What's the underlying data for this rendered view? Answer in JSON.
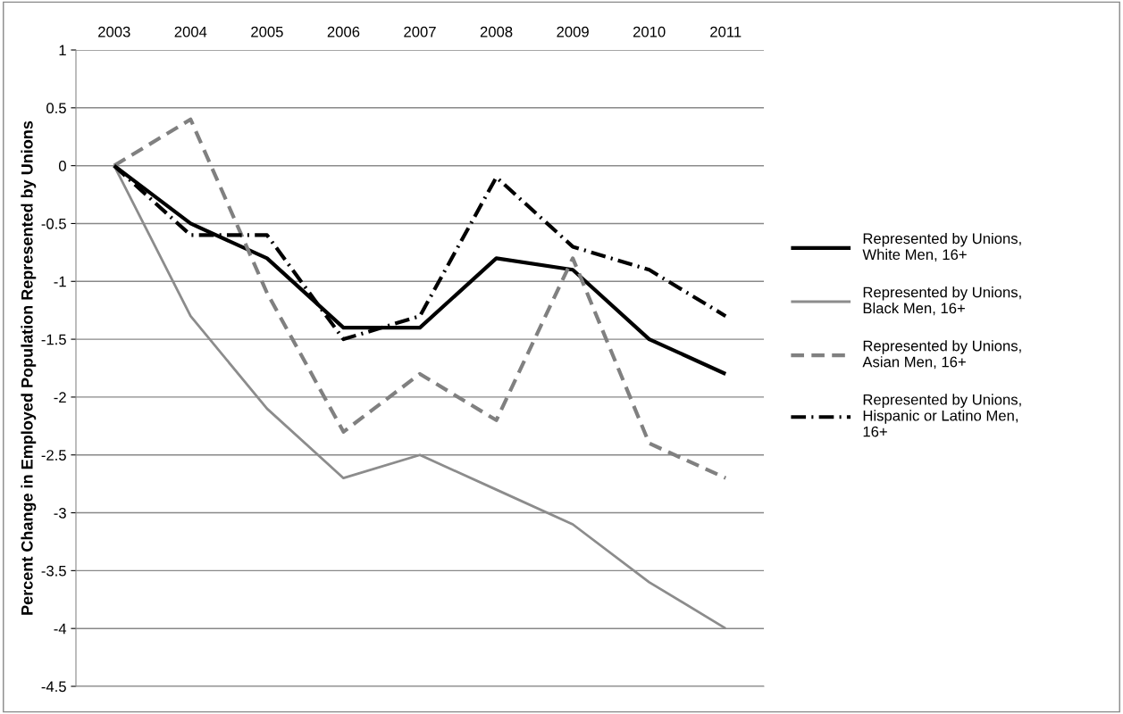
{
  "chart_data": {
    "type": "line",
    "ylabel": "Percent Change in Employed Population Represented by Unions",
    "categories": [
      "2003",
      "2004",
      "2005",
      "2006",
      "2007",
      "2008",
      "2009",
      "2010",
      "2011"
    ],
    "series": [
      {
        "name": "Represented by Unions, White Men, 16+",
        "color": "#000000",
        "line_style": "solid",
        "values": [
          0,
          -0.5,
          -0.8,
          -1.4,
          -1.4,
          -0.8,
          -0.9,
          -1.5,
          -1.8
        ]
      },
      {
        "name": "Represented by Unions, Black Men, 16+",
        "color": "#8c8c8c",
        "line_style": "solid",
        "values": [
          0,
          -1.3,
          -2.1,
          -2.7,
          -2.5,
          -2.8,
          -3.1,
          -3.6,
          -4.0
        ]
      },
      {
        "name": "Represented by Unions, Asian Men, 16+",
        "color": "#808080",
        "line_style": "dashed",
        "values": [
          0,
          0.4,
          -1.1,
          -2.3,
          -1.8,
          -2.2,
          -0.8,
          -2.4,
          -2.7
        ]
      },
      {
        "name": "Represented by Unions, Hispanic or Latino Men, 16+",
        "color": "#000000",
        "line_style": "dashdot",
        "values": [
          0,
          -0.6,
          -0.6,
          -1.5,
          -1.3,
          -0.1,
          -0.7,
          -0.9,
          -1.3
        ]
      }
    ],
    "ylim": [
      -4.5,
      1
    ],
    "yticks": [
      -4.5,
      -4,
      -3.5,
      -3,
      -2.5,
      -2,
      -1.5,
      -1,
      -0.5,
      0,
      0.5,
      1
    ],
    "grid": "y",
    "legend": "right",
    "marker": "none"
  }
}
